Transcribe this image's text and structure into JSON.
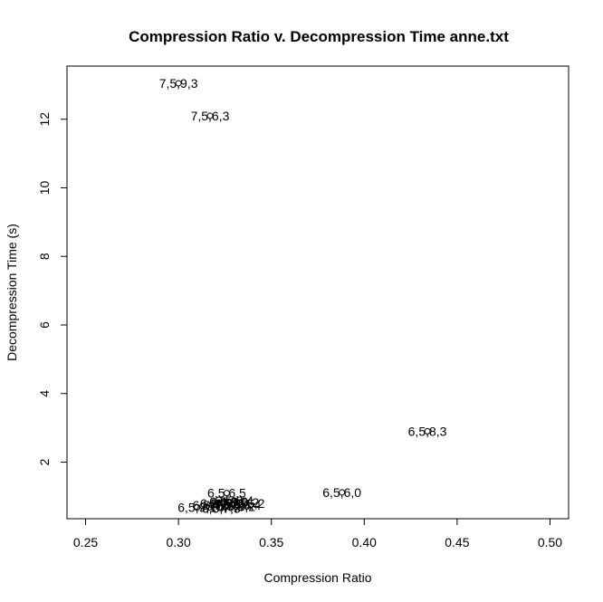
{
  "chart_data": {
    "type": "scatter",
    "title": "Compression Ratio v. Decompression Time anne.txt",
    "xlabel": "Compression Ratio",
    "ylabel": "Decompression Time (s)",
    "xlim": [
      0.24,
      0.51
    ],
    "ylim": [
      0.35,
      13.55
    ],
    "x_ticks": [
      0.25,
      0.3,
      0.35,
      0.4,
      0.45,
      0.5
    ],
    "x_tick_labels": [
      "0.25",
      "0.30",
      "0.35",
      "0.40",
      "0.45",
      "0.50"
    ],
    "y_ticks": [
      2,
      4,
      6,
      8,
      10,
      12
    ],
    "y_tick_labels": [
      "2",
      "4",
      "6",
      "8",
      "10",
      "12"
    ],
    "grid": false,
    "legend": "none",
    "points": [
      {
        "x": 0.3,
        "y": 13.05,
        "label": "7,5,9,3"
      },
      {
        "x": 0.317,
        "y": 12.1,
        "label": "7,5,6,3"
      },
      {
        "x": 0.434,
        "y": 2.9,
        "label": "6,5,8,3"
      },
      {
        "x": 0.388,
        "y": 1.12,
        "label": "6,5,6,0"
      },
      {
        "x": 0.326,
        "y": 1.1,
        "label": "6,5,6,5"
      },
      {
        "x": 0.31,
        "y": 0.68,
        "label": "6,5,9,1"
      },
      {
        "x": 0.318,
        "y": 0.75,
        "label": "6,5,7,0"
      },
      {
        "x": 0.322,
        "y": 0.8,
        "label": "6,5,7,1"
      },
      {
        "x": 0.325,
        "y": 0.72,
        "label": "6,5,7,2"
      },
      {
        "x": 0.327,
        "y": 0.85,
        "label": "6,5,8,0"
      },
      {
        "x": 0.329,
        "y": 0.78,
        "label": "6,5,8,1"
      },
      {
        "x": 0.331,
        "y": 0.7,
        "label": "6,5,8,2"
      },
      {
        "x": 0.333,
        "y": 0.82,
        "label": "6,5,9,2"
      },
      {
        "x": 0.334,
        "y": 0.74,
        "label": "6,5,6,4"
      },
      {
        "x": 0.336,
        "y": 0.8,
        "label": "6,5,6,2"
      },
      {
        "x": 0.323,
        "y": 0.66,
        "label": "6,5,7,3"
      },
      {
        "x": 0.33,
        "y": 0.88,
        "label": "6,5,8,4"
      }
    ]
  }
}
